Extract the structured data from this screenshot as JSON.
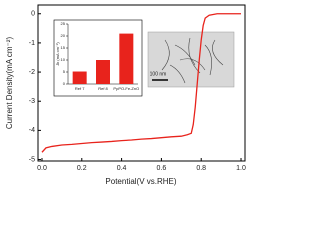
{
  "chart_data": [
    {
      "type": "line",
      "xlabel": "Potential(V vs.RHE)",
      "ylabel": "Current Density(mA cm⁻²)",
      "x": [
        0,
        0.02,
        0.05,
        0.1,
        0.15,
        0.2,
        0.25,
        0.3,
        0.35,
        0.4,
        0.45,
        0.5,
        0.55,
        0.6,
        0.65,
        0.7,
        0.73,
        0.75,
        0.76,
        0.77,
        0.78,
        0.79,
        0.8,
        0.81,
        0.82,
        0.84,
        0.88,
        0.95,
        1.0
      ],
      "series": [
        {
          "color": "#e8231c",
          "values": [
            -4.75,
            -4.6,
            -4.55,
            -4.5,
            -4.48,
            -4.45,
            -4.42,
            -4.4,
            -4.38,
            -4.35,
            -4.33,
            -4.3,
            -4.28,
            -4.25,
            -4.22,
            -4.2,
            -4.15,
            -4.1,
            -3.8,
            -3.2,
            -2.4,
            -1.6,
            -0.9,
            -0.4,
            -0.15,
            -0.05,
            0,
            0,
            0
          ]
        }
      ],
      "xlim": [
        -0.02,
        1.02
      ],
      "ylim": [
        -5.05,
        0.3
      ],
      "xticks": [
        {
          "value": 0,
          "label": "0.0"
        },
        {
          "value": 0.2,
          "label": "0.2"
        },
        {
          "value": 0.4,
          "label": "0.4"
        },
        {
          "value": 0.6,
          "label": "0.6"
        },
        {
          "value": 0.8,
          "label": "0.8"
        },
        {
          "value": 1,
          "label": "1.0"
        }
      ],
      "yticks": [
        -5,
        -4,
        -3,
        -2,
        -1,
        0
      ],
      "annotations": [
        "100 nm"
      ]
    },
    {
      "type": "bar",
      "ylabel": "Jk (mA cm⁻²)",
      "categories": [
        "Ref 7",
        "Ref 8",
        "PpPO-Fe-ZnO"
      ],
      "values": [
        5.2,
        10,
        21
      ],
      "color": "#e8231c",
      "ylim": [
        0,
        25
      ],
      "yticks": [
        0,
        5,
        10,
        15,
        20,
        25
      ]
    }
  ]
}
